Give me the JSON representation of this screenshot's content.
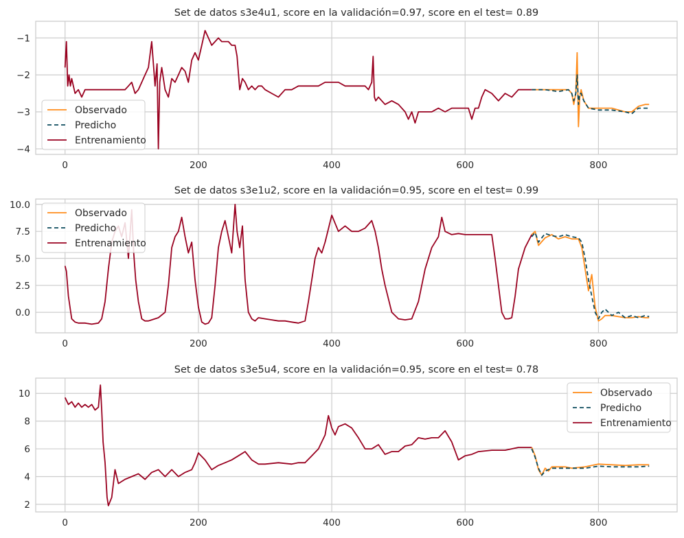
{
  "colors": {
    "observado": "#ff8c1a",
    "predicho": "#0b4a5c",
    "entrenamiento": "#99001f",
    "grid": "#cccccc",
    "axis": "#cccccc"
  },
  "chart_data": [
    {
      "type": "line",
      "title": "Set de datos s3e4u1, score en la validación=0.97, score en el test= 0.89",
      "xlabel": "",
      "ylabel": "",
      "xlim": [
        -44,
        918
      ],
      "ylim": [
        -4.15,
        -0.55
      ],
      "xticks": [
        0,
        200,
        400,
        600,
        800
      ],
      "yticks": [
        -4,
        -3,
        -2,
        -1
      ],
      "xtick_labels": [
        "0",
        "200",
        "400",
        "600",
        "800"
      ],
      "ytick_labels": [
        "−4",
        "−3",
        "−2",
        "−1"
      ],
      "grid": true,
      "legend": {
        "placement": "lower-left",
        "entries": [
          "Observado",
          "Predicho",
          "Entrenamiento"
        ]
      },
      "series": [
        {
          "name": "Entrenamiento",
          "x": [
            0,
            2,
            4,
            6,
            8,
            10,
            15,
            20,
            25,
            30,
            40,
            50,
            60,
            70,
            80,
            90,
            95,
            100,
            105,
            110,
            115,
            120,
            125,
            130,
            135,
            138,
            140,
            142,
            145,
            150,
            155,
            160,
            165,
            170,
            175,
            180,
            185,
            190,
            195,
            200,
            205,
            210,
            215,
            220,
            225,
            230,
            235,
            240,
            245,
            250,
            255,
            258,
            262,
            266,
            270,
            275,
            280,
            285,
            290,
            295,
            300,
            310,
            320,
            330,
            340,
            350,
            360,
            370,
            380,
            390,
            400,
            410,
            420,
            430,
            440,
            450,
            455,
            460,
            462,
            464,
            466,
            470,
            480,
            490,
            500,
            510,
            515,
            520,
            525,
            530,
            540,
            550,
            560,
            570,
            580,
            590,
            600,
            605,
            610,
            615,
            620,
            625,
            630,
            640,
            650,
            660,
            670,
            680,
            690,
            700
          ],
          "y": [
            -1.8,
            -1.1,
            -2.3,
            -2.0,
            -2.3,
            -2.1,
            -2.5,
            -2.4,
            -2.6,
            -2.4,
            -2.4,
            -2.4,
            -2.4,
            -2.4,
            -2.4,
            -2.4,
            -2.3,
            -2.2,
            -2.5,
            -2.4,
            -2.2,
            -2.0,
            -1.8,
            -1.1,
            -2.3,
            -1.7,
            -4.0,
            -2.2,
            -1.8,
            -2.4,
            -2.6,
            -2.1,
            -2.2,
            -2.0,
            -1.8,
            -1.9,
            -2.2,
            -1.6,
            -1.4,
            -1.6,
            -1.2,
            -0.8,
            -1.0,
            -1.2,
            -1.1,
            -1.0,
            -1.1,
            -1.1,
            -1.1,
            -1.2,
            -1.2,
            -1.5,
            -2.4,
            -2.1,
            -2.2,
            -2.4,
            -2.3,
            -2.4,
            -2.3,
            -2.3,
            -2.4,
            -2.5,
            -2.6,
            -2.4,
            -2.4,
            -2.3,
            -2.3,
            -2.3,
            -2.3,
            -2.2,
            -2.2,
            -2.2,
            -2.3,
            -2.3,
            -2.3,
            -2.3,
            -2.4,
            -2.2,
            -1.5,
            -2.6,
            -2.7,
            -2.6,
            -2.8,
            -2.7,
            -2.8,
            -3.0,
            -3.2,
            -3.0,
            -3.3,
            -3.0,
            -3.0,
            -3.0,
            -2.9,
            -3.0,
            -2.9,
            -2.9,
            -2.9,
            -2.9,
            -3.2,
            -2.9,
            -2.9,
            -2.6,
            -2.4,
            -2.5,
            -2.7,
            -2.5,
            -2.6,
            -2.4,
            -2.4,
            -2.4
          ]
        },
        {
          "name": "Observado",
          "x": [
            700,
            720,
            740,
            755,
            760,
            763,
            766,
            768,
            770,
            772,
            774,
            778,
            785,
            800,
            820,
            840,
            850,
            860,
            870,
            876
          ],
          "y": [
            -2.4,
            -2.4,
            -2.4,
            -2.4,
            -2.5,
            -2.8,
            -2.5,
            -1.4,
            -3.4,
            -2.6,
            -2.4,
            -2.7,
            -2.9,
            -2.9,
            -2.9,
            -3.0,
            -3.0,
            -2.85,
            -2.8,
            -2.8
          ]
        },
        {
          "name": "Predicho",
          "x": [
            700,
            720,
            740,
            755,
            760,
            763,
            766,
            768,
            770,
            772,
            774,
            778,
            785,
            800,
            820,
            840,
            850,
            860,
            870,
            876
          ],
          "y": [
            -2.4,
            -2.4,
            -2.45,
            -2.4,
            -2.5,
            -2.7,
            -2.5,
            -2.0,
            -2.8,
            -2.5,
            -2.5,
            -2.7,
            -2.9,
            -2.95,
            -2.95,
            -3.0,
            -3.05,
            -2.9,
            -2.9,
            -2.9
          ]
        }
      ]
    },
    {
      "type": "line",
      "title": "Set de datos s3e1u2, score en la validación=0.95, score en el test= 0.99",
      "xlabel": "",
      "ylabel": "",
      "xlim": [
        -44,
        918
      ],
      "ylim": [
        -1.9,
        10.5
      ],
      "xticks": [
        0,
        200,
        400,
        600,
        800
      ],
      "yticks": [
        0.0,
        2.5,
        5.0,
        7.5,
        10.0
      ],
      "xtick_labels": [
        "0",
        "200",
        "400",
        "600",
        "800"
      ],
      "ytick_labels": [
        "0.0",
        "2.5",
        "5.0",
        "7.5",
        "10.0"
      ],
      "grid": true,
      "legend": {
        "placement": "upper-left",
        "entries": [
          "Observado",
          "Predicho",
          "Entrenamiento"
        ]
      },
      "series": [
        {
          "name": "Entrenamiento",
          "x": [
            0,
            2,
            5,
            10,
            15,
            20,
            30,
            40,
            50,
            55,
            60,
            65,
            70,
            75,
            80,
            85,
            90,
            95,
            100,
            103,
            106,
            110,
            115,
            120,
            125,
            130,
            140,
            150,
            155,
            160,
            165,
            170,
            175,
            180,
            185,
            190,
            195,
            200,
            205,
            210,
            215,
            220,
            225,
            230,
            235,
            240,
            245,
            250,
            255,
            258,
            262,
            266,
            270,
            275,
            280,
            285,
            290,
            300,
            310,
            320,
            330,
            340,
            350,
            360,
            365,
            370,
            375,
            380,
            385,
            390,
            400,
            410,
            420,
            430,
            440,
            450,
            460,
            465,
            470,
            475,
            480,
            490,
            500,
            510,
            520,
            530,
            540,
            550,
            560,
            565,
            570,
            580,
            590,
            600,
            620,
            640,
            645,
            650,
            655,
            660,
            665,
            670,
            675,
            680,
            690,
            700
          ],
          "y": [
            4.3,
            3.8,
            1.5,
            -0.6,
            -0.9,
            -1.0,
            -1.0,
            -1.1,
            -1.0,
            -0.6,
            1.0,
            4.0,
            6.5,
            7.5,
            8.0,
            7.0,
            8.3,
            5.0,
            9.5,
            5.5,
            3.0,
            1.0,
            -0.6,
            -0.8,
            -0.8,
            -0.7,
            -0.5,
            0.0,
            2.5,
            6.0,
            7.0,
            7.5,
            8.8,
            7.0,
            5.5,
            6.5,
            3.0,
            0.5,
            -0.9,
            -1.1,
            -1.0,
            -0.5,
            2.5,
            6.0,
            7.5,
            8.5,
            7.0,
            5.5,
            10.0,
            7.5,
            6.0,
            8.0,
            3.0,
            0.0,
            -0.6,
            -0.8,
            -0.5,
            -0.6,
            -0.7,
            -0.8,
            -0.8,
            -0.9,
            -1.0,
            -0.8,
            1.0,
            3.0,
            5.0,
            6.0,
            5.5,
            6.5,
            9.0,
            7.5,
            8.0,
            7.5,
            7.5,
            7.8,
            8.5,
            7.5,
            6.0,
            4.0,
            2.5,
            0.0,
            -0.6,
            -0.7,
            -0.6,
            1.0,
            4.0,
            6.0,
            7.0,
            8.8,
            7.5,
            7.2,
            7.3,
            7.2,
            7.2,
            7.2,
            5.0,
            2.5,
            0.0,
            -0.6,
            -0.6,
            -0.5,
            1.5,
            4.0,
            6.0,
            7.2
          ]
        },
        {
          "name": "Observado",
          "x": [
            700,
            705,
            710,
            720,
            730,
            740,
            750,
            760,
            770,
            775,
            780,
            785,
            790,
            795,
            800,
            805,
            810,
            820,
            830,
            840,
            850,
            860,
            870,
            876
          ],
          "y": [
            7.2,
            7.5,
            6.2,
            6.9,
            7.2,
            6.8,
            7.0,
            6.8,
            6.8,
            6.0,
            4.0,
            2.0,
            3.5,
            0.5,
            -0.8,
            -0.6,
            -0.3,
            -0.3,
            -0.4,
            -0.5,
            -0.5,
            -0.4,
            -0.5,
            -0.5
          ]
        },
        {
          "name": "Predicho",
          "x": [
            700,
            705,
            710,
            720,
            730,
            740,
            750,
            760,
            770,
            775,
            780,
            785,
            790,
            795,
            800,
            805,
            810,
            820,
            830,
            840,
            850,
            860,
            870,
            876
          ],
          "y": [
            7.0,
            7.4,
            6.5,
            7.3,
            7.1,
            7.0,
            7.2,
            7.0,
            6.9,
            6.5,
            5.0,
            3.0,
            1.5,
            0.0,
            -0.6,
            0.0,
            0.3,
            -0.3,
            0.0,
            -0.5,
            -0.3,
            -0.5,
            -0.3,
            -0.4
          ]
        }
      ]
    },
    {
      "type": "line",
      "title": "Set de datos s3e5u4, score en la validación=0.95, score en el test= 0.78",
      "xlabel": "",
      "ylabel": "",
      "xlim": [
        -44,
        918
      ],
      "ylim": [
        1.45,
        11.1
      ],
      "xticks": [
        0,
        200,
        400,
        600,
        800
      ],
      "yticks": [
        2,
        4,
        6,
        8,
        10
      ],
      "xtick_labels": [
        "0",
        "200",
        "400",
        "600",
        "800"
      ],
      "ytick_labels": [
        "2",
        "4",
        "6",
        "8",
        "10"
      ],
      "grid": true,
      "legend": {
        "placement": "upper-right",
        "entries": [
          "Observado",
          "Predicho",
          "Entrenamiento"
        ]
      },
      "series": [
        {
          "name": "Entrenamiento",
          "x": [
            0,
            5,
            10,
            15,
            20,
            25,
            30,
            35,
            40,
            45,
            50,
            53,
            55,
            57,
            60,
            63,
            65,
            70,
            75,
            80,
            90,
            100,
            110,
            120,
            130,
            140,
            150,
            160,
            170,
            180,
            190,
            195,
            200,
            210,
            220,
            230,
            240,
            250,
            260,
            270,
            280,
            290,
            300,
            320,
            340,
            350,
            360,
            370,
            380,
            390,
            395,
            400,
            405,
            410,
            420,
            430,
            440,
            450,
            460,
            470,
            480,
            490,
            500,
            510,
            520,
            530,
            540,
            550,
            560,
            570,
            580,
            590,
            600,
            610,
            620,
            640,
            660,
            680,
            700
          ],
          "y": [
            9.7,
            9.2,
            9.4,
            9.0,
            9.3,
            9.0,
            9.2,
            9.0,
            9.2,
            8.8,
            9.0,
            10.6,
            8.8,
            6.5,
            5.0,
            2.5,
            1.9,
            2.5,
            4.5,
            3.5,
            3.8,
            4.0,
            4.2,
            3.8,
            4.3,
            4.5,
            4.0,
            4.5,
            4.0,
            4.3,
            4.5,
            5.0,
            5.7,
            5.2,
            4.5,
            4.8,
            5.0,
            5.2,
            5.5,
            5.8,
            5.2,
            4.9,
            4.9,
            5.0,
            4.9,
            5.0,
            5.0,
            5.5,
            6.0,
            7.0,
            8.4,
            7.5,
            7.0,
            7.6,
            7.8,
            7.5,
            6.8,
            6.0,
            6.0,
            6.3,
            5.6,
            5.8,
            5.8,
            6.2,
            6.3,
            6.8,
            6.7,
            6.8,
            6.8,
            7.3,
            6.5,
            5.2,
            5.5,
            5.6,
            5.8,
            5.9,
            5.9,
            6.1,
            6.1
          ]
        },
        {
          "name": "Observado",
          "x": [
            700,
            705,
            710,
            715,
            720,
            725,
            730,
            740,
            750,
            760,
            780,
            800,
            820,
            840,
            860,
            876
          ],
          "y": [
            6.1,
            5.5,
            4.5,
            4.1,
            4.6,
            4.4,
            4.7,
            4.7,
            4.7,
            4.6,
            4.7,
            4.9,
            4.85,
            4.8,
            4.85,
            4.85
          ]
        },
        {
          "name": "Predicho",
          "x": [
            700,
            705,
            710,
            715,
            720,
            725,
            730,
            740,
            750,
            760,
            780,
            800,
            820,
            840,
            860,
            876
          ],
          "y": [
            6.0,
            5.4,
            4.6,
            4.1,
            4.4,
            4.5,
            4.6,
            4.6,
            4.6,
            4.6,
            4.6,
            4.75,
            4.7,
            4.7,
            4.7,
            4.75
          ]
        }
      ]
    }
  ]
}
